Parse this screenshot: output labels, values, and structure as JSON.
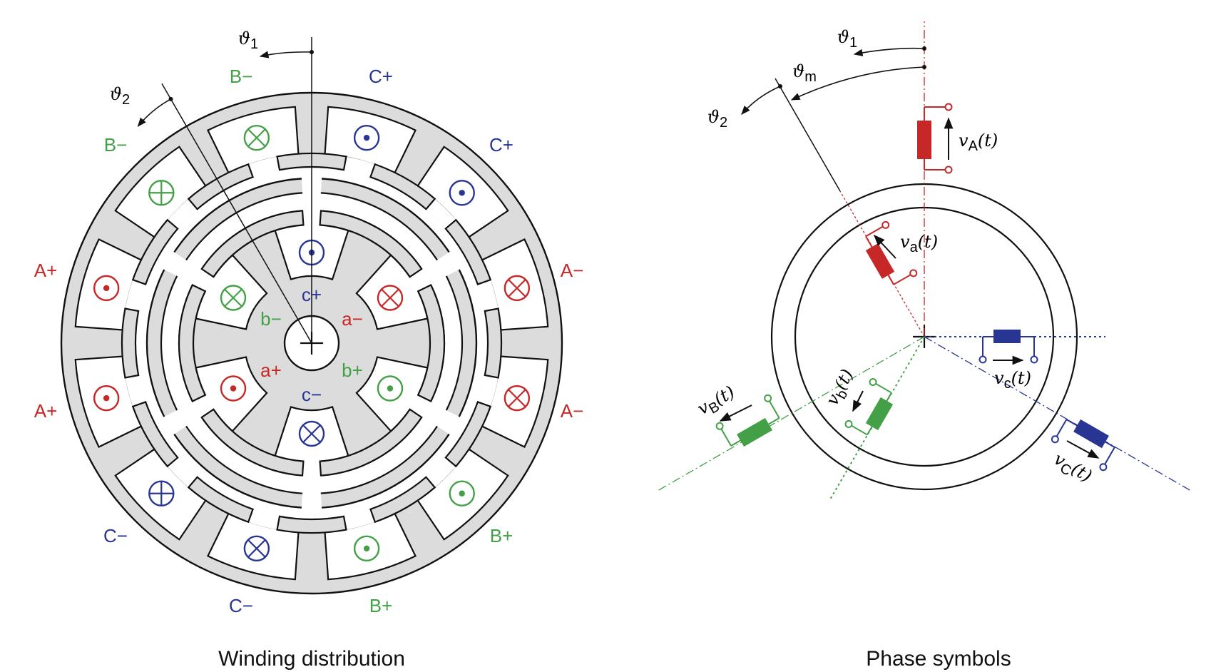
{
  "colors": {
    "phase_a": "#c62828",
    "phase_b": "#43a047",
    "phase_c": "#283593",
    "iron": "#dcdcdc",
    "line": "#111111"
  },
  "winding": {
    "caption": "Winding distribution",
    "theta1": {
      "symbol": "ϑ",
      "sub": "1"
    },
    "theta2": {
      "symbol": "ϑ",
      "sub": "2"
    },
    "stator_labels": [
      {
        "text": "B−",
        "phase": "b"
      },
      {
        "text": "C+",
        "phase": "c"
      },
      {
        "text": "B−",
        "phase": "b"
      },
      {
        "text": "C+",
        "phase": "c"
      },
      {
        "text": "A+",
        "phase": "a"
      },
      {
        "text": "A−",
        "phase": "a"
      },
      {
        "text": "A+",
        "phase": "a"
      },
      {
        "text": "A−",
        "phase": "a"
      },
      {
        "text": "C−",
        "phase": "c"
      },
      {
        "text": "B+",
        "phase": "b"
      },
      {
        "text": "C−",
        "phase": "c"
      },
      {
        "text": "B+",
        "phase": "b"
      }
    ],
    "rotor_labels": [
      {
        "text": "c+",
        "phase": "c"
      },
      {
        "text": "a−",
        "phase": "a"
      },
      {
        "text": "b−",
        "phase": "b"
      },
      {
        "text": "a+",
        "phase": "a"
      },
      {
        "text": "b+",
        "phase": "b"
      },
      {
        "text": "c−",
        "phase": "c"
      }
    ]
  },
  "phase": {
    "caption": "Phase symbols",
    "theta1": {
      "symbol": "ϑ",
      "sub": "1"
    },
    "theta_m": {
      "symbol": "ϑ",
      "sub": "m"
    },
    "theta2": {
      "symbol": "ϑ",
      "sub": "2"
    },
    "vA": {
      "symbol": "v",
      "sub": "A",
      "arg": "(t)"
    },
    "va": {
      "symbol": "v",
      "sub": "a",
      "arg": "(t)"
    },
    "vB": {
      "symbol": "v",
      "sub": "B",
      "arg": "(t)"
    },
    "vb": {
      "symbol": "v",
      "sub": "b",
      "arg": "(t)"
    },
    "vc": {
      "symbol": "v",
      "sub": "c",
      "arg": "(t)"
    },
    "vC": {
      "symbol": "v",
      "sub": "C",
      "arg": "(t)"
    }
  }
}
